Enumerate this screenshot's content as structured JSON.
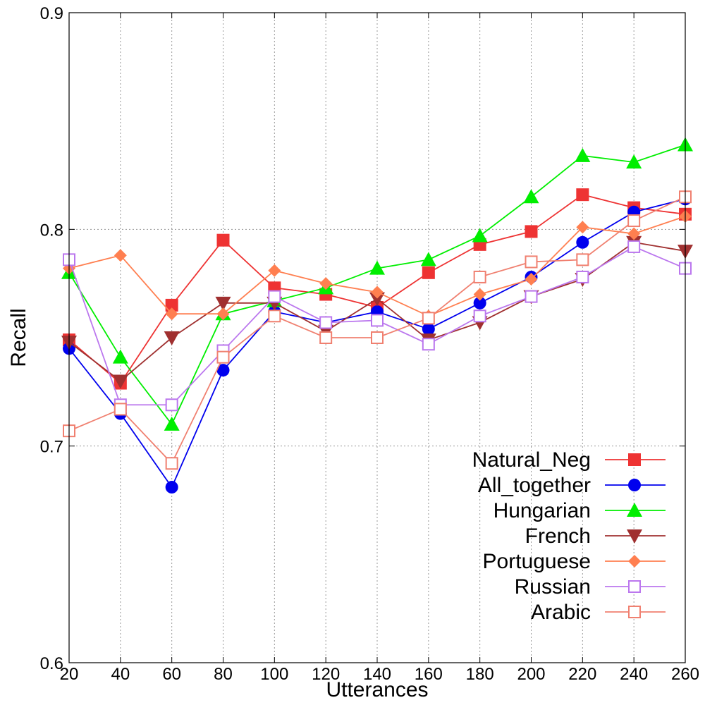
{
  "chart_data": {
    "type": "line",
    "title": "",
    "xlabel": "Utterances",
    "ylabel": "Recall",
    "xlim": [
      20,
      260
    ],
    "ylim": [
      0.6,
      0.9
    ],
    "x": [
      20,
      40,
      60,
      80,
      100,
      120,
      140,
      160,
      180,
      200,
      220,
      240,
      260
    ],
    "x_ticks": [
      "20",
      "40",
      "60",
      "80",
      "100",
      "120",
      "140",
      "160",
      "180",
      "200",
      "220",
      "240",
      "260"
    ],
    "y_ticks": [
      {
        "value": 0.6,
        "label": "0.6"
      },
      {
        "value": 0.7,
        "label": "0.7"
      },
      {
        "value": 0.8,
        "label": "0.8"
      },
      {
        "value": 0.9,
        "label": "0.9"
      }
    ],
    "grid": true,
    "legend_position": "bottom-right",
    "series": [
      {
        "name": "Natural_Neg",
        "color": "#ee3333",
        "marker": "square-filled",
        "values": [
          0.749,
          0.729,
          0.765,
          0.795,
          0.773,
          0.77,
          0.764,
          0.78,
          0.793,
          0.799,
          0.816,
          0.81,
          0.807
        ]
      },
      {
        "name": "All_together",
        "color": "#0000ee",
        "marker": "circle-filled",
        "values": [
          0.745,
          0.715,
          0.681,
          0.735,
          0.762,
          0.757,
          0.762,
          0.754,
          0.766,
          0.778,
          0.794,
          0.808,
          0.814
        ]
      },
      {
        "name": "Hungarian",
        "color": "#00ee00",
        "marker": "triangle-up-filled",
        "values": [
          0.78,
          0.741,
          0.71,
          0.761,
          0.767,
          0.773,
          0.782,
          0.786,
          0.797,
          0.815,
          0.834,
          0.831,
          0.839
        ]
      },
      {
        "name": "French",
        "color": "#a03030",
        "marker": "triangle-down-filled",
        "values": [
          0.748,
          0.73,
          0.75,
          0.766,
          0.766,
          0.753,
          0.768,
          0.749,
          0.757,
          0.769,
          0.777,
          0.794,
          0.79
        ]
      },
      {
        "name": "Portuguese",
        "color": "#ff7f50",
        "marker": "diamond-filled",
        "values": [
          0.782,
          0.788,
          0.761,
          0.761,
          0.781,
          0.775,
          0.771,
          0.76,
          0.77,
          0.777,
          0.801,
          0.798,
          0.806
        ]
      },
      {
        "name": "Russian",
        "color": "#bb77ee",
        "marker": "square-open",
        "values": [
          0.786,
          0.719,
          0.719,
          0.744,
          0.769,
          0.757,
          0.758,
          0.747,
          0.76,
          0.769,
          0.778,
          0.792,
          0.782
        ]
      },
      {
        "name": "Arabic",
        "color": "#f08070",
        "marker": "square-open",
        "values": [
          0.707,
          0.717,
          0.692,
          0.741,
          0.76,
          0.75,
          0.75,
          0.759,
          0.778,
          0.785,
          0.786,
          0.804,
          0.815
        ]
      }
    ]
  }
}
